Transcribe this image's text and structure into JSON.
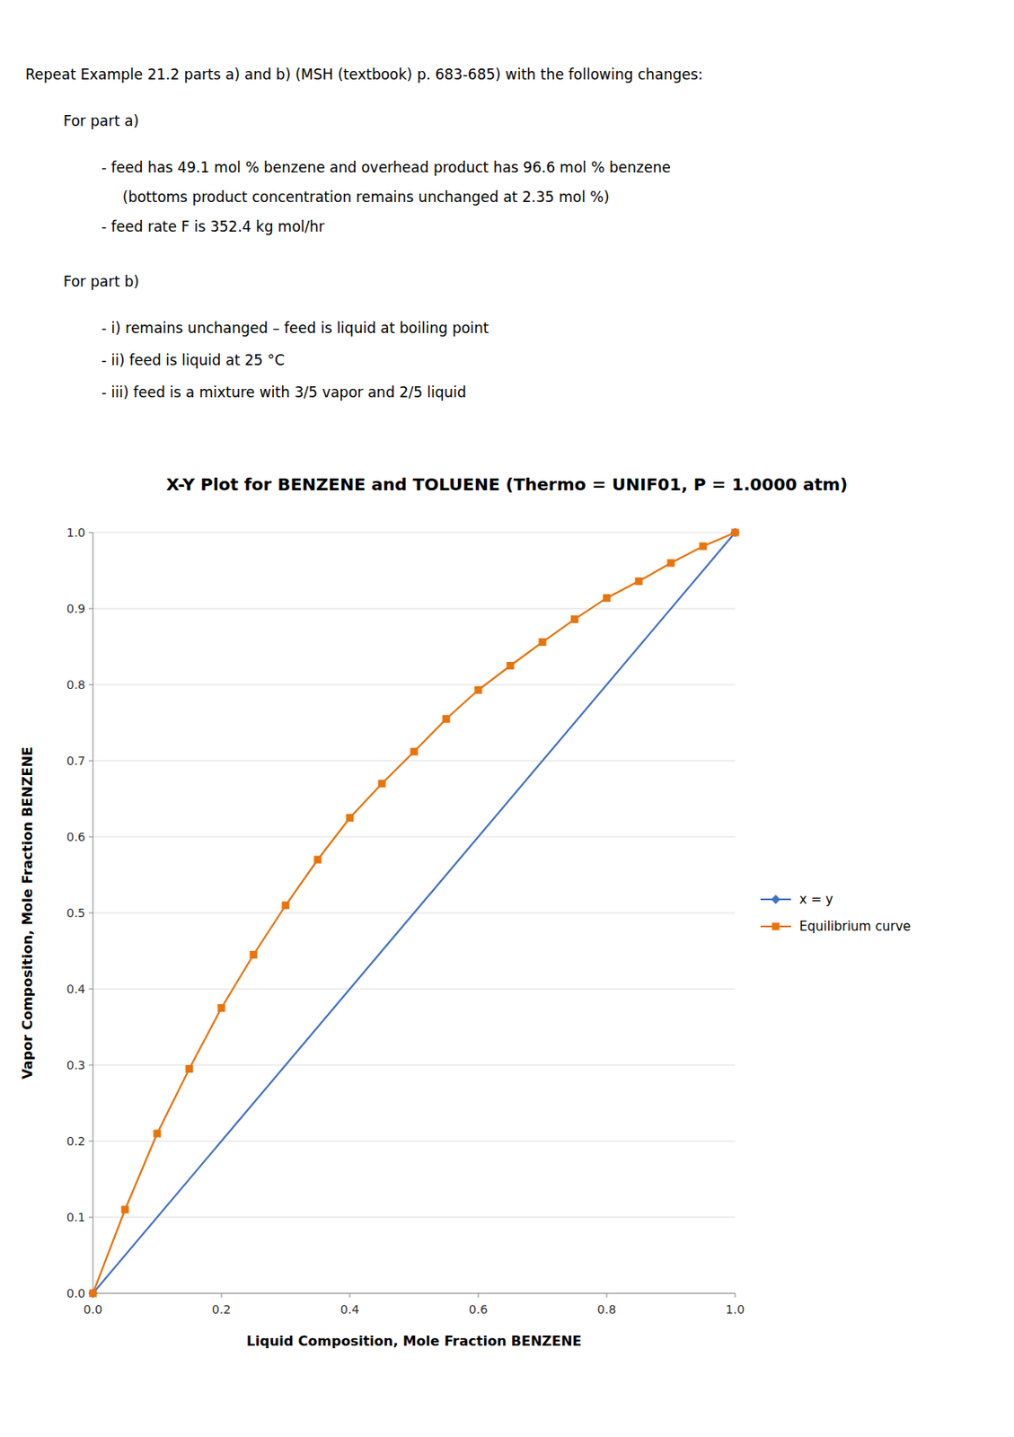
{
  "chart_data": {
    "type": "line",
    "title": "X-Y Plot for BENZENE and TOLUENE (Thermo = UNIF01, P = 1.0000 atm)",
    "annotations": [
      "Repeat Example 21.2 parts a) and b) (MSH (textbook) p. 683-685) with the following changes:",
      "For part a)",
      "- feed has 49.1 mol % benzene and overhead product has 96.6 mol % benzene",
      "(bottoms product concentration remains unchanged at 2.35 mol %)",
      "- feed rate F is 352.4 kg mol/hr",
      "For part b)",
      "- i) remains unchanged – feed is liquid at boiling point",
      "- ii) feed is liquid at 25 °C",
      "- iii) feed is a mixture with 3/5 vapor and 2/5 liquid"
    ],
    "xlabel": "Liquid Composition, Mole Fraction BENZENE",
    "ylabel": "Vapor Composition, Mole Fraction BENZENE",
    "series": [
      {
        "name": "x = y",
        "color": "#4472C4",
        "marker": "diamond",
        "x": [
          0.0,
          1.0
        ],
        "values": [
          0.0,
          1.0
        ]
      },
      {
        "name": "Equilibrium curve",
        "color": "#E8740C",
        "marker": "square",
        "x": [
          0.0,
          0.05,
          0.1,
          0.15,
          0.2,
          0.25,
          0.3,
          0.35,
          0.4,
          0.45,
          0.5,
          0.55,
          0.6,
          0.65,
          0.7,
          0.75,
          0.8,
          0.85,
          0.9,
          0.95,
          1.0
        ],
        "values": [
          0.0,
          0.11,
          0.21,
          0.295,
          0.375,
          0.445,
          0.51,
          0.57,
          0.625,
          0.67,
          0.712,
          0.755,
          0.793,
          0.825,
          0.856,
          0.886,
          0.914,
          0.936,
          0.96,
          0.982,
          1.0
        ]
      }
    ],
    "xlim": [
      0,
      1
    ],
    "ylim": [
      0,
      1
    ],
    "xticks": [
      {
        "value": 0,
        "label": "0.0"
      },
      0.2,
      0.4,
      0.6,
      0.8,
      {
        "value": 1,
        "label": "1.0"
      }
    ],
    "yticks": [
      {
        "value": 0,
        "label": "0.0"
      },
      0.1,
      0.2,
      0.3,
      0.4,
      0.5,
      0.6,
      0.7,
      0.8,
      0.9,
      {
        "value": 1,
        "label": "1.0"
      }
    ],
    "grid": "y",
    "legend": "right"
  }
}
